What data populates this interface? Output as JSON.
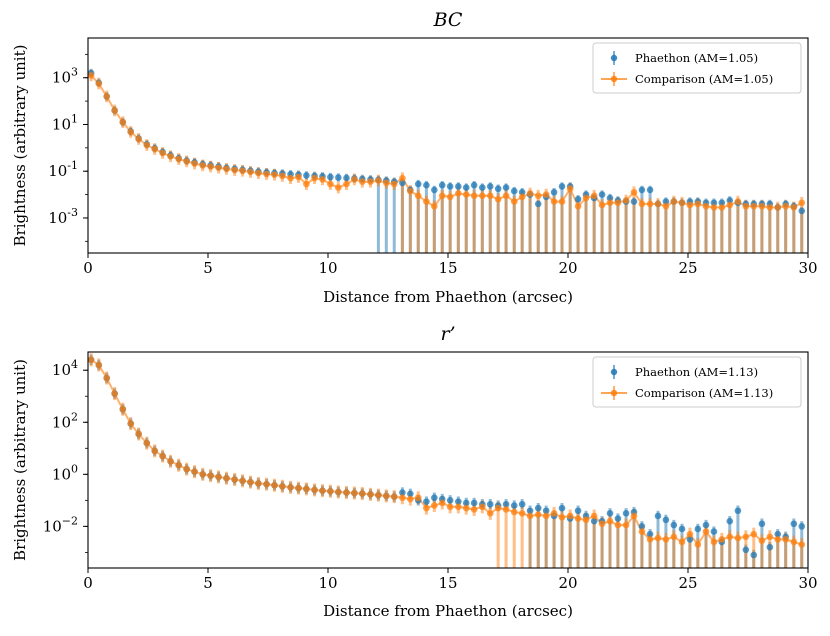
{
  "colors": {
    "phaethon": "#1f77b4",
    "comparison": "#ff7f0e"
  },
  "chart_data": [
    {
      "type": "scatter",
      "title": "BC",
      "xlabel": "Distance from Phaethon (arcsec)",
      "ylabel": "Brightness (arbitrary unit)",
      "xlim": [
        0,
        30
      ],
      "ylim_log10": [
        -4.5,
        4.7
      ],
      "yscale": "log",
      "xticks": [
        0,
        5,
        10,
        15,
        20,
        25,
        30
      ],
      "yticks": [
        {
          "exp": "-3"
        },
        {
          "exp": "-1"
        },
        {
          "exp": "1"
        },
        {
          "exp": "3"
        }
      ],
      "legend_position": "upper right",
      "series": [
        {
          "name": "Phaethon (AM=1.05)",
          "style": "errorbar-points",
          "x": [
            0.13,
            0.45,
            0.78,
            1.11,
            1.45,
            1.78,
            2.11,
            2.45,
            2.78,
            3.11,
            3.44,
            3.78,
            4.11,
            4.44,
            4.78,
            5.11,
            5.44,
            5.77,
            6.11,
            6.44,
            6.77,
            7.1,
            7.44,
            7.77,
            8.1,
            8.44,
            8.77,
            9.1,
            9.44,
            9.77,
            10.1,
            10.43,
            10.77,
            11.1,
            11.43,
            11.77,
            12.1,
            12.43,
            12.76,
            13.1,
            13.43,
            13.76,
            14.1,
            14.43,
            14.76,
            15.09,
            15.43,
            15.76,
            16.09,
            16.43,
            16.76,
            17.09,
            17.42,
            17.76,
            18.09,
            18.42,
            18.76,
            19.09,
            19.42,
            19.75,
            20.09,
            20.42,
            20.75,
            21.09,
            21.42,
            21.75,
            22.08,
            22.42,
            22.75,
            23.08,
            23.42,
            23.75,
            24.08,
            24.41,
            24.75,
            25.08,
            25.41,
            25.75,
            26.08,
            26.41,
            26.74,
            27.08,
            27.41,
            27.74,
            28.08,
            28.41,
            28.74,
            29.07,
            29.41,
            29.74
          ],
          "log10_y": [
            3.2,
            2.78,
            2.2,
            1.6,
            1.1,
            0.7,
            0.4,
            0.15,
            -0.02,
            -0.18,
            -0.32,
            -0.45,
            -0.55,
            -0.62,
            -0.7,
            -0.75,
            -0.8,
            -0.86,
            -0.9,
            -0.94,
            -0.98,
            -1.02,
            -1.05,
            -1.08,
            -1.1,
            -1.13,
            -1.15,
            -1.18,
            -1.2,
            -1.22,
            -1.25,
            -1.27,
            -1.29,
            -1.31,
            -1.33,
            -1.35,
            -1.37,
            -1.4,
            -1.45,
            -1.5,
            -1.8,
            -1.55,
            -1.6,
            -1.8,
            -1.6,
            -1.65,
            -1.65,
            -1.7,
            -1.6,
            -1.7,
            -1.65,
            -1.75,
            -1.7,
            -1.85,
            -1.9,
            -2.0,
            -2.4,
            -2.1,
            -1.9,
            -1.65,
            -1.65,
            -2.2,
            -2.0,
            -2.15,
            -2.0,
            -2.15,
            -2.25,
            -2.3,
            -2.3,
            -1.8,
            -1.8,
            -2.4,
            -2.3,
            -2.3,
            -2.35,
            -2.3,
            -2.3,
            -2.35,
            -2.35,
            -2.35,
            -2.25,
            -2.35,
            -2.4,
            -2.4,
            -2.4,
            -2.4,
            -2.55,
            -2.4,
            -2.5,
            -2.7
          ],
          "err_lower_to_bottom_from_x": 12.1,
          "err_up": 0.18
        },
        {
          "name": "Comparison (AM=1.05)",
          "style": "errorbar-line",
          "x": [
            0.13,
            0.45,
            0.78,
            1.11,
            1.45,
            1.78,
            2.11,
            2.45,
            2.78,
            3.11,
            3.44,
            3.78,
            4.11,
            4.44,
            4.78,
            5.11,
            5.44,
            5.77,
            6.11,
            6.44,
            6.77,
            7.1,
            7.44,
            7.77,
            8.1,
            8.44,
            8.77,
            9.1,
            9.44,
            9.77,
            10.1,
            10.43,
            10.77,
            11.1,
            11.43,
            11.77,
            12.1,
            12.43,
            12.76,
            13.1,
            13.43,
            13.76,
            14.1,
            14.43,
            14.76,
            15.09,
            15.43,
            15.76,
            16.09,
            16.43,
            16.76,
            17.09,
            17.42,
            17.76,
            18.09,
            18.42,
            18.76,
            19.09,
            19.42,
            19.75,
            20.09,
            20.42,
            20.75,
            21.09,
            21.42,
            21.75,
            22.08,
            22.42,
            22.75,
            23.08,
            23.42,
            23.75,
            24.08,
            24.41,
            24.75,
            25.08,
            25.41,
            25.75,
            26.08,
            26.41,
            26.74,
            27.08,
            27.41,
            27.74,
            28.08,
            28.41,
            28.74,
            29.07,
            29.41,
            29.74
          ],
          "log10_y": [
            3.1,
            2.75,
            2.2,
            1.6,
            1.1,
            0.68,
            0.38,
            0.12,
            -0.05,
            -0.22,
            -0.36,
            -0.48,
            -0.58,
            -0.67,
            -0.75,
            -0.8,
            -0.85,
            -0.9,
            -0.95,
            -0.98,
            -1.03,
            -1.08,
            -1.12,
            -1.15,
            -1.2,
            -1.3,
            -1.25,
            -1.55,
            -1.3,
            -1.35,
            -1.55,
            -1.7,
            -1.55,
            -1.35,
            -1.45,
            -1.45,
            -1.4,
            -1.5,
            -1.55,
            -1.3,
            -1.85,
            -2.05,
            -2.3,
            -2.5,
            -2.05,
            -2.1,
            -1.95,
            -2.0,
            -2.05,
            -2.05,
            -2.05,
            -2.2,
            -2.05,
            -2.3,
            -2.1,
            -1.95,
            -2.05,
            -2.0,
            -2.3,
            -2.3,
            -1.75,
            -2.5,
            -2.15,
            -2.05,
            -2.45,
            -2.35,
            -2.35,
            -2.25,
            -1.9,
            -2.4,
            -2.4,
            -2.4,
            -2.5,
            -2.3,
            -2.35,
            -2.45,
            -2.4,
            -2.5,
            -2.55,
            -2.55,
            -2.45,
            -2.3,
            -2.5,
            -2.5,
            -2.5,
            -2.55,
            -2.55,
            -2.5,
            -2.55,
            -2.35
          ],
          "err_lower_to_bottom_from_x": 13.1,
          "err_up": 0.25
        }
      ]
    },
    {
      "type": "scatter",
      "title": "r’",
      "xlabel": "Distance from Phaethon (arcsec)",
      "ylabel": "Brightness (arbitrary unit)",
      "xlim": [
        0,
        30
      ],
      "ylim_log10": [
        -3.6,
        4.7
      ],
      "yscale": "log",
      "xticks": [
        0,
        5,
        10,
        15,
        20,
        25,
        30
      ],
      "yticks": [
        {
          "exp": "−2"
        },
        {
          "exp": "0"
        },
        {
          "exp": "2"
        },
        {
          "exp": "4"
        }
      ],
      "legend_position": "upper right",
      "series": [
        {
          "name": "Phaethon (AM=1.13)",
          "style": "errorbar-points",
          "x": [
            0.13,
            0.45,
            0.78,
            1.11,
            1.45,
            1.78,
            2.11,
            2.45,
            2.78,
            3.11,
            3.44,
            3.78,
            4.11,
            4.44,
            4.78,
            5.11,
            5.44,
            5.77,
            6.11,
            6.44,
            6.77,
            7.1,
            7.44,
            7.77,
            8.1,
            8.44,
            8.77,
            9.1,
            9.44,
            9.77,
            10.1,
            10.43,
            10.77,
            11.1,
            11.43,
            11.77,
            12.1,
            12.43,
            12.76,
            13.1,
            13.43,
            13.76,
            14.1,
            14.43,
            14.76,
            15.09,
            15.43,
            15.76,
            16.09,
            16.43,
            16.76,
            17.09,
            17.42,
            17.76,
            18.09,
            18.42,
            18.76,
            19.09,
            19.42,
            19.75,
            20.09,
            20.42,
            20.75,
            21.09,
            21.42,
            21.75,
            22.08,
            22.42,
            22.75,
            23.08,
            23.42,
            23.75,
            24.08,
            24.41,
            24.75,
            25.08,
            25.41,
            25.75,
            26.08,
            26.41,
            26.74,
            27.08,
            27.41,
            27.74,
            28.08,
            28.41,
            28.74,
            29.07,
            29.41,
            29.74
          ],
          "log10_y": [
            4.4,
            4.2,
            3.7,
            3.1,
            2.5,
            1.95,
            1.55,
            1.2,
            0.9,
            0.7,
            0.5,
            0.35,
            0.2,
            0.1,
            0.0,
            -0.05,
            -0.1,
            -0.15,
            -0.2,
            -0.25,
            -0.3,
            -0.35,
            -0.38,
            -0.42,
            -0.46,
            -0.5,
            -0.53,
            -0.56,
            -0.6,
            -0.63,
            -0.65,
            -0.68,
            -0.7,
            -0.72,
            -0.74,
            -0.77,
            -0.8,
            -0.83,
            -0.86,
            -0.7,
            -0.75,
            -1.0,
            -1.05,
            -0.9,
            -0.95,
            -1.0,
            -1.05,
            -1.1,
            -1.1,
            -1.15,
            -1.15,
            -1.2,
            -1.15,
            -1.2,
            -1.15,
            -1.4,
            -1.3,
            -1.4,
            -1.6,
            -1.3,
            -1.7,
            -1.4,
            -1.6,
            -1.8,
            -1.8,
            -1.5,
            -1.7,
            -1.5,
            -1.45,
            -2.0,
            -2.3,
            -1.6,
            -1.75,
            -1.95,
            -2.1,
            -2.5,
            -2.1,
            -1.95,
            -2.2,
            -2.6,
            -1.8,
            -1.4,
            -2.9,
            -3.1,
            -1.9,
            -2.8,
            -2.3,
            -2.4,
            -1.9,
            -2.0
          ],
          "err_lower_to_bottom_from_x": 18.1,
          "err_up": 0.2
        },
        {
          "name": "Comparison (AM=1.13)",
          "style": "errorbar-line",
          "x": [
            0.13,
            0.45,
            0.78,
            1.11,
            1.45,
            1.78,
            2.11,
            2.45,
            2.78,
            3.11,
            3.44,
            3.78,
            4.11,
            4.44,
            4.78,
            5.11,
            5.44,
            5.77,
            6.11,
            6.44,
            6.77,
            7.1,
            7.44,
            7.77,
            8.1,
            8.44,
            8.77,
            9.1,
            9.44,
            9.77,
            10.1,
            10.43,
            10.77,
            11.1,
            11.43,
            11.77,
            12.1,
            12.43,
            12.76,
            13.1,
            13.43,
            13.76,
            14.1,
            14.43,
            14.76,
            15.09,
            15.43,
            15.76,
            16.09,
            16.43,
            16.76,
            17.09,
            17.42,
            17.76,
            18.09,
            18.42,
            18.76,
            19.09,
            19.42,
            19.75,
            20.09,
            20.42,
            20.75,
            21.09,
            21.42,
            21.75,
            22.08,
            22.42,
            22.75,
            23.08,
            23.42,
            23.75,
            24.08,
            24.41,
            24.75,
            25.08,
            25.41,
            25.75,
            26.08,
            26.41,
            26.74,
            27.08,
            27.41,
            27.74,
            28.08,
            28.41,
            28.74,
            29.07,
            29.41,
            29.74
          ],
          "log10_y": [
            4.4,
            4.2,
            3.7,
            3.1,
            2.5,
            1.95,
            1.55,
            1.2,
            0.9,
            0.7,
            0.5,
            0.35,
            0.2,
            0.1,
            0.0,
            -0.05,
            -0.1,
            -0.15,
            -0.2,
            -0.25,
            -0.3,
            -0.35,
            -0.38,
            -0.42,
            -0.46,
            -0.5,
            -0.53,
            -0.56,
            -0.6,
            -0.63,
            -0.65,
            -0.68,
            -0.7,
            -0.72,
            -0.74,
            -0.77,
            -0.8,
            -0.83,
            -0.86,
            -0.9,
            -0.95,
            -0.9,
            -1.3,
            -1.2,
            -1.1,
            -1.25,
            -1.25,
            -1.3,
            -1.35,
            -1.25,
            -1.5,
            -1.3,
            -1.35,
            -1.45,
            -1.5,
            -1.6,
            -1.55,
            -1.6,
            -1.5,
            -1.65,
            -1.6,
            -1.7,
            -1.75,
            -1.6,
            -1.9,
            -1.8,
            -1.95,
            -1.95,
            -1.6,
            -2.2,
            -2.5,
            -2.45,
            -2.5,
            -2.4,
            -2.6,
            -2.3,
            -2.7,
            -2.2,
            -2.6,
            -2.5,
            -2.4,
            -2.45,
            -2.4,
            -2.3,
            -2.55,
            -2.4,
            -2.5,
            -2.5,
            -2.6,
            -2.7
          ],
          "err_lower_to_bottom_from_x": 16.8,
          "err_up": 0.25
        }
      ]
    }
  ]
}
